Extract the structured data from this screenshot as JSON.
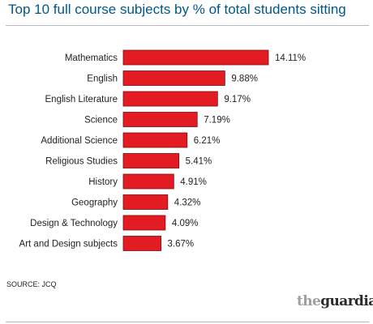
{
  "chart_data": {
    "type": "bar",
    "orientation": "horizontal",
    "title": "Top 10 full course subjects by % of total students sitting",
    "categories": [
      "Mathematics",
      "English",
      "English Literature",
      "Science",
      "Additional Science",
      "Religious Studies",
      "History",
      "Geography",
      "Design & Technology",
      "Art and Design subjects"
    ],
    "values": [
      14.11,
      9.88,
      9.17,
      7.19,
      6.21,
      5.41,
      4.91,
      4.32,
      4.09,
      3.67
    ],
    "value_labels": [
      "14.11%",
      "9.88%",
      "9.17%",
      "7.19%",
      "6.21%",
      "5.41%",
      "4.91%",
      "4.32%",
      "4.09%",
      "3.67%"
    ],
    "xlim": [
      0,
      14.11
    ],
    "grid": false,
    "colors": {
      "bar": "#e31c23",
      "bar_edge": "#7a0d10",
      "title": "#005689"
    }
  },
  "source": "SOURCE: JCQ",
  "brand": {
    "the": "the",
    "name": "guardian"
  }
}
